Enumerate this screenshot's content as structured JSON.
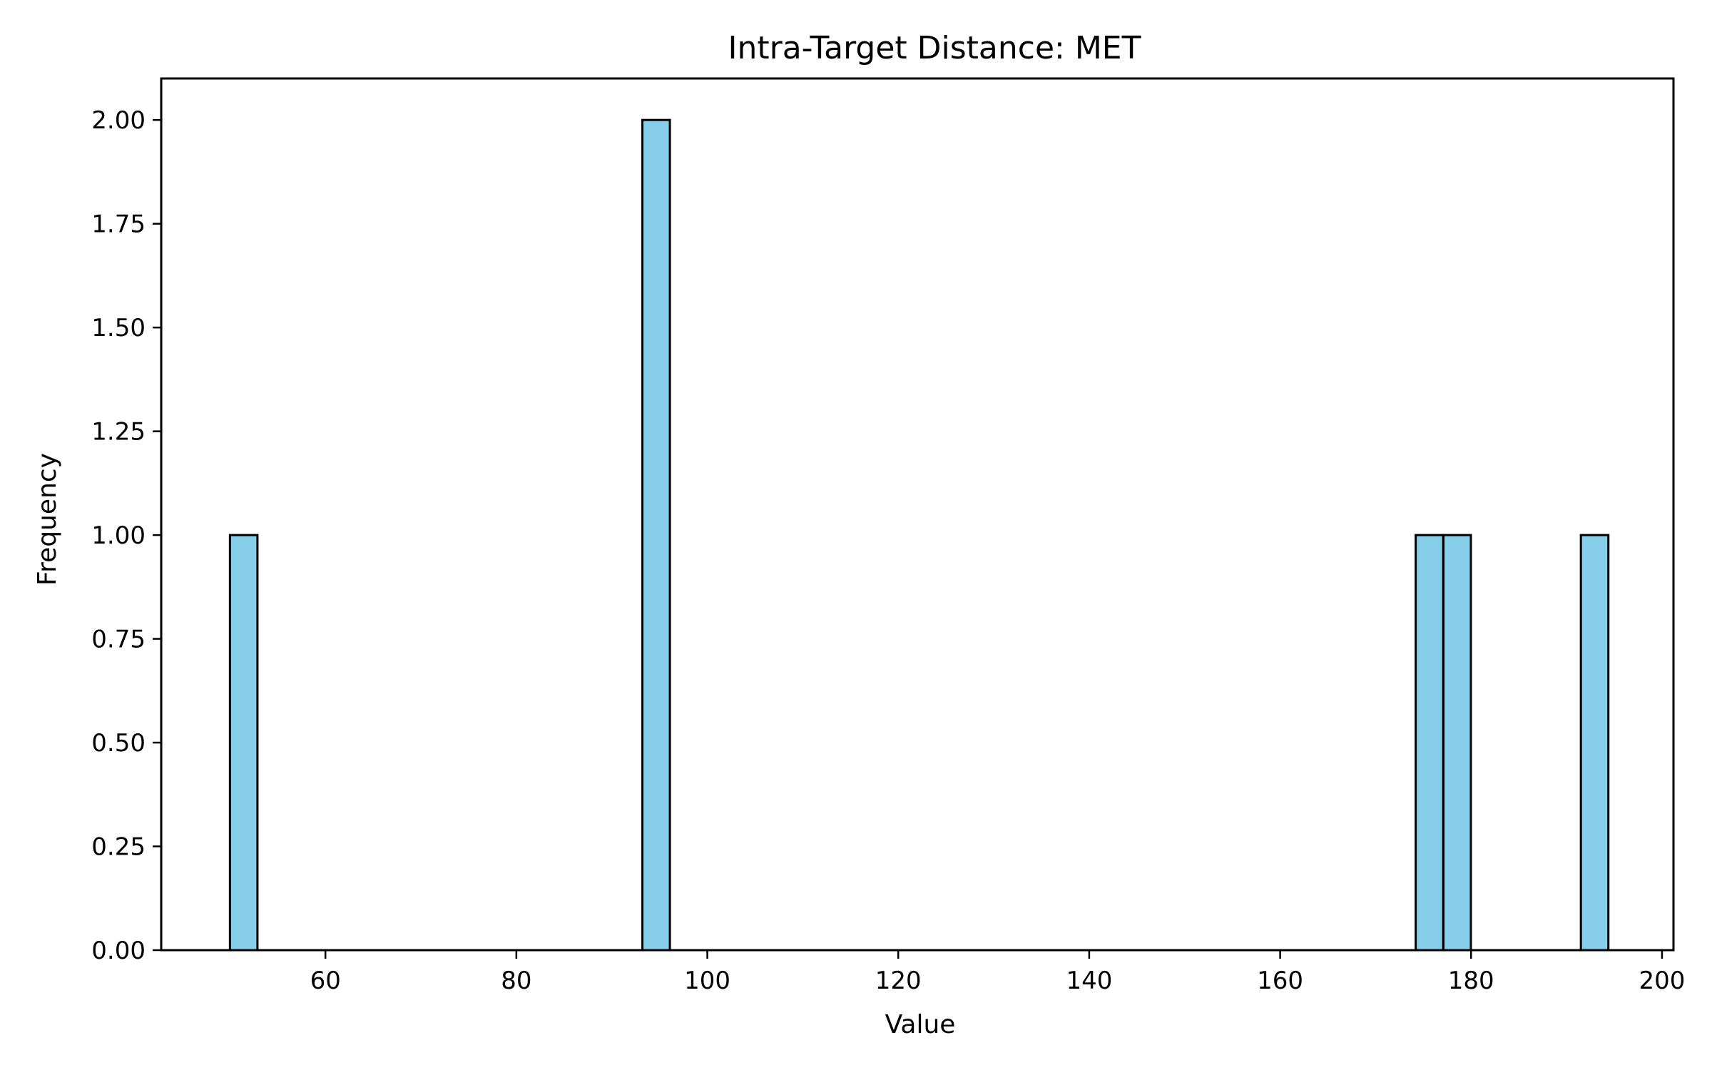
{
  "chart_data": {
    "type": "bar",
    "title": "Intra-Target Distance: MET",
    "xlabel": "Value",
    "ylabel": "Frequency",
    "xlim": [
      42.8,
      201.2
    ],
    "ylim": [
      0,
      2.1
    ],
    "xticks": [
      60,
      80,
      100,
      120,
      140,
      160,
      180,
      200
    ],
    "xtick_labels": [
      "60",
      "80",
      "100",
      "120",
      "140",
      "160",
      "180",
      "200"
    ],
    "yticks": [
      0,
      0.25,
      0.5,
      0.75,
      1.0,
      1.25,
      1.5,
      1.75,
      2.0
    ],
    "ytick_labels": [
      "0.00",
      "0.25",
      "0.50",
      "0.75",
      "1.00",
      "1.25",
      "1.50",
      "1.75",
      "2.00"
    ],
    "bin_width": 2.88,
    "bars": [
      {
        "x_start": 50.0,
        "value": 1
      },
      {
        "x_start": 93.2,
        "value": 2
      },
      {
        "x_start": 174.2,
        "value": 1
      },
      {
        "x_start": 177.1,
        "value": 1
      },
      {
        "x_start": 191.5,
        "value": 1
      }
    ],
    "colors": {
      "bar_fill": "#87ceeb",
      "bar_edge": "#000000",
      "axes": "#000000"
    }
  }
}
